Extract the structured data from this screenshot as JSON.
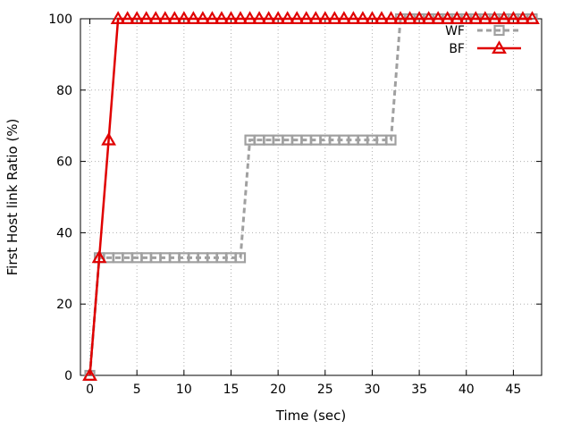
{
  "chart_data": {
    "type": "line",
    "title": "",
    "xlabel": "Time (sec)",
    "ylabel": "First Host link Ratio (%)",
    "xlim": [
      -1,
      48
    ],
    "ylim": [
      0,
      100
    ],
    "xticks": [
      0,
      5,
      10,
      15,
      20,
      25,
      30,
      35,
      40,
      45
    ],
    "yticks": [
      0,
      20,
      40,
      60,
      80,
      100
    ],
    "grid": true,
    "legend_position": "top-right",
    "series": [
      {
        "name": "WF",
        "color": "#a0a0a0",
        "line_style": "dashed",
        "marker": "square",
        "x": [
          0,
          1,
          2,
          3,
          4,
          5,
          6,
          7,
          8,
          9,
          10,
          11,
          12,
          13,
          14,
          15,
          16,
          17,
          18,
          19,
          20,
          21,
          22,
          23,
          24,
          25,
          26,
          27,
          28,
          29,
          30,
          31,
          32,
          33,
          34,
          35,
          36,
          37,
          38,
          39,
          40,
          41,
          42,
          43,
          44,
          45,
          46,
          47
        ],
        "y": [
          0,
          33,
          33,
          33,
          33,
          33,
          33,
          33,
          33,
          33,
          33,
          33,
          33,
          33,
          33,
          33,
          33,
          66,
          66,
          66,
          66,
          66,
          66,
          66,
          66,
          66,
          66,
          66,
          66,
          66,
          66,
          66,
          66,
          100,
          100,
          100,
          100,
          100,
          100,
          100,
          100,
          100,
          100,
          100,
          100,
          100,
          100,
          100
        ]
      },
      {
        "name": "BF",
        "color": "#e00000",
        "line_style": "solid",
        "marker": "triangle",
        "x": [
          0,
          1,
          2,
          3,
          4,
          5,
          6,
          7,
          8,
          9,
          10,
          11,
          12,
          13,
          14,
          15,
          16,
          17,
          18,
          19,
          20,
          21,
          22,
          23,
          24,
          25,
          26,
          27,
          28,
          29,
          30,
          31,
          32,
          33,
          34,
          35,
          36,
          37,
          38,
          39,
          40,
          41,
          42,
          43,
          44,
          45,
          46,
          47
        ],
        "y": [
          0,
          33,
          66,
          100,
          100,
          100,
          100,
          100,
          100,
          100,
          100,
          100,
          100,
          100,
          100,
          100,
          100,
          100,
          100,
          100,
          100,
          100,
          100,
          100,
          100,
          100,
          100,
          100,
          100,
          100,
          100,
          100,
          100,
          100,
          100,
          100,
          100,
          100,
          100,
          100,
          100,
          100,
          100,
          100,
          100,
          100,
          100,
          100
        ]
      }
    ]
  }
}
